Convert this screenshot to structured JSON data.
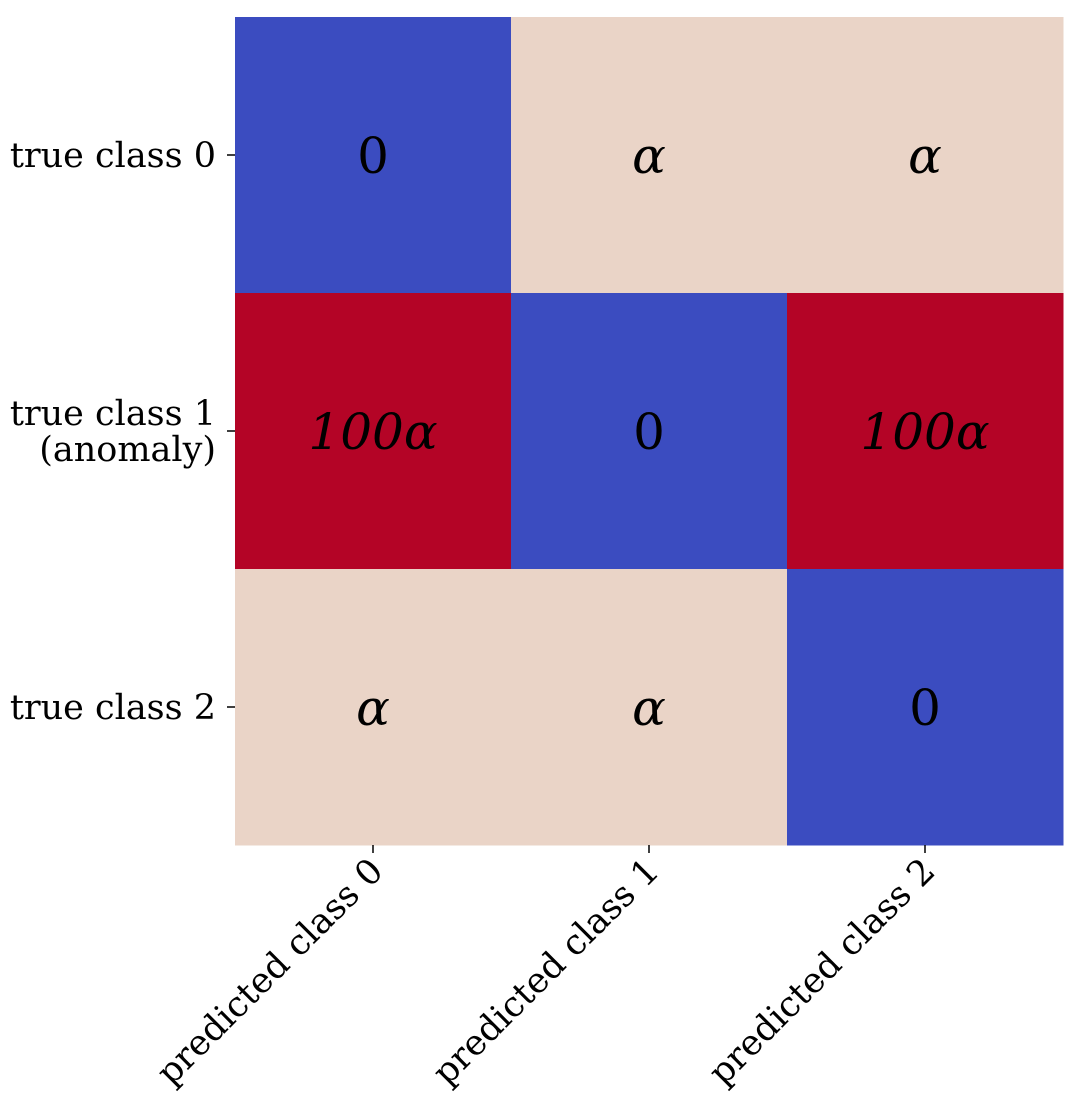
{
  "chart_data": {
    "type": "heatmap",
    "title": "",
    "xlabel": "",
    "ylabel": "",
    "x_tick_labels": [
      "predicted class 0",
      "predicted class 1",
      "predicted class 2"
    ],
    "y_tick_labels": [
      {
        "lines": [
          "true class 0"
        ],
        "highlight": false
      },
      {
        "lines": [
          "true class 1",
          "(anomaly)"
        ],
        "highlight": true
      },
      {
        "lines": [
          "true class 2"
        ],
        "highlight": false
      }
    ],
    "cell_labels": [
      [
        "0",
        "α",
        "α"
      ],
      [
        "100α",
        "0",
        "100α"
      ],
      [
        "α",
        "α",
        "0"
      ]
    ],
    "values": [
      [
        0,
        1,
        1
      ],
      [
        100,
        0,
        100
      ],
      [
        1,
        1,
        0
      ]
    ],
    "value_units": "multiples of α",
    "colormap": "coolwarm",
    "cell_colors": {
      "zero": "#3b4cc0",
      "alpha": "#ead4c7",
      "hundred_alpha": "#b40426"
    },
    "highlight_label_color": "#b33a3a",
    "tick_label_color": "#000000",
    "grid": false,
    "colorbar": false
  }
}
